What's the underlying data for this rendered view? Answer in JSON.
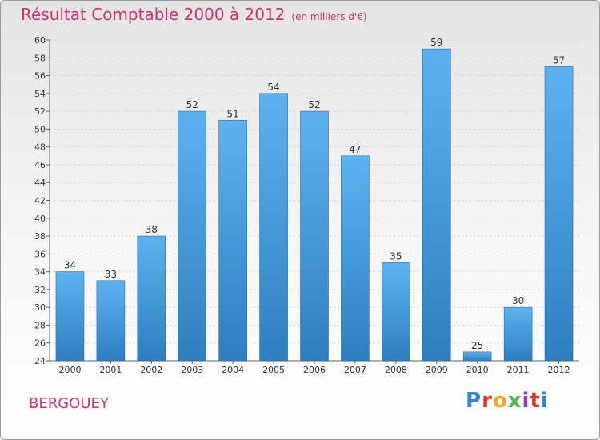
{
  "header": {
    "title": "Résultat Comptable 2000 à 2012",
    "subtitle": "(en milliers d'€)"
  },
  "footer": {
    "commune": "BERGOUEY",
    "logo": "Proxiti"
  },
  "colors": {
    "title": "#d1326e",
    "bar_top": "#5cb2ee",
    "bar_bottom": "#2f7fc0"
  },
  "chart_data": {
    "type": "bar",
    "title": "Résultat Comptable 2000 à 2012",
    "subtitle": "(en milliers d'€)",
    "xlabel": "",
    "ylabel": "",
    "categories": [
      "2000",
      "2001",
      "2002",
      "2003",
      "2004",
      "2005",
      "2006",
      "2007",
      "2008",
      "2009",
      "2010",
      "2011",
      "2012"
    ],
    "values": [
      34,
      33,
      38,
      52,
      51,
      54,
      52,
      47,
      35,
      59,
      25,
      30,
      57
    ],
    "ylim": [
      24,
      60
    ],
    "yticks": [
      24,
      26,
      28,
      30,
      32,
      34,
      36,
      38,
      40,
      42,
      44,
      46,
      48,
      50,
      52,
      54,
      56,
      58,
      60
    ],
    "grid": true
  }
}
